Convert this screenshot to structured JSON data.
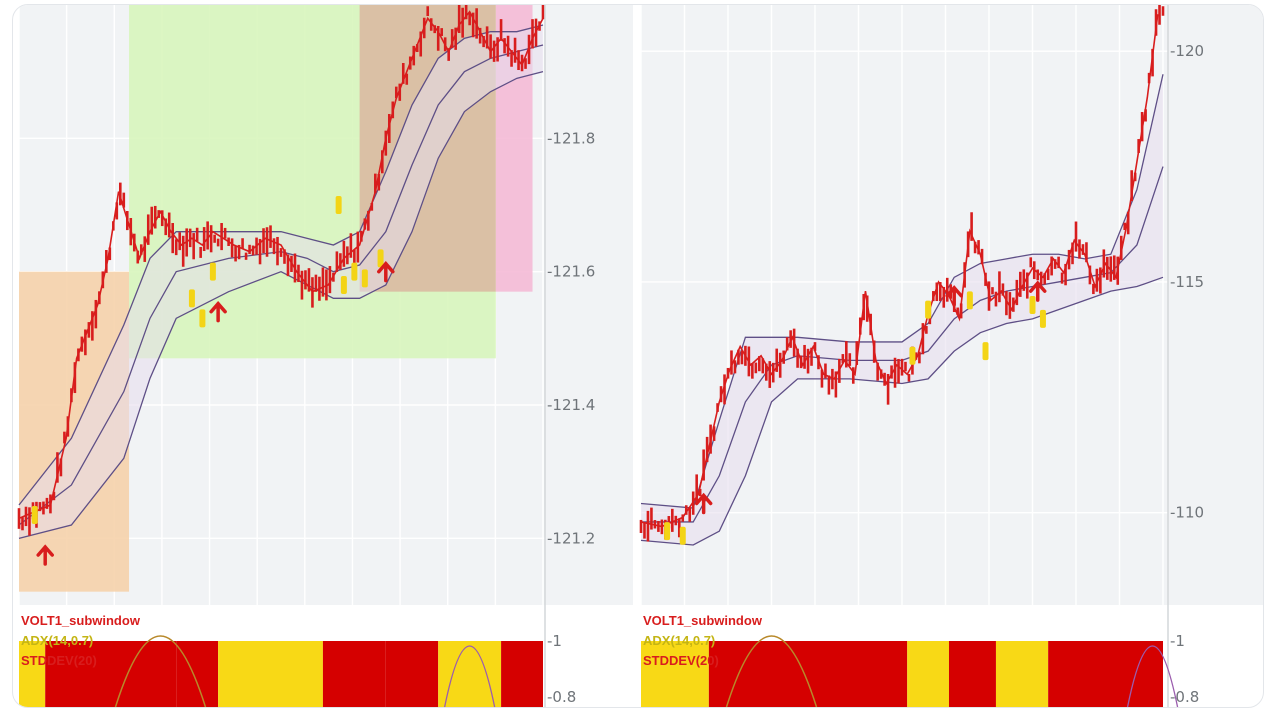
{
  "colors": {
    "candle": "#d81d1d",
    "signal": "#f3d416",
    "band_line": "#5e4f86",
    "band_fill": "#e6dced",
    "zone_orange": "#f6cfa6",
    "zone_green": "#d6f5b8",
    "zone_brown": "#d9b6a0",
    "zone_pink": "#f5b6d4",
    "bg_gray": "#f1f3f5",
    "ind_red": "#d50000",
    "ind_yellow": "#f8d916",
    "adx_line": "#b8892a"
  },
  "chart_data": [
    {
      "type": "line",
      "title": "",
      "ylim": [
        121.1,
        122.0
      ],
      "yticks": [
        121.2,
        121.4,
        121.6,
        121.8
      ],
      "y_axis_labels": [
        "-121.2",
        "-121.4",
        "-121.6",
        "-121.8"
      ],
      "grid": true,
      "series": [
        {
          "role": "price",
          "x": [
            0,
            3,
            6,
            9,
            11,
            13,
            15,
            17,
            19,
            21,
            23,
            25,
            27,
            29,
            31,
            33,
            35,
            37,
            39,
            41,
            44,
            47,
            50,
            53,
            56,
            59,
            62,
            65,
            68,
            70,
            72,
            74,
            76,
            78,
            80,
            82,
            84,
            86,
            88,
            90,
            92,
            94,
            96,
            98,
            100
          ],
          "values": [
            121.23,
            121.24,
            121.25,
            121.35,
            121.47,
            121.51,
            121.55,
            121.62,
            121.72,
            121.67,
            121.62,
            121.66,
            121.69,
            121.66,
            121.64,
            121.65,
            121.64,
            121.66,
            121.65,
            121.64,
            121.63,
            121.65,
            121.64,
            121.6,
            121.57,
            121.58,
            121.62,
            121.64,
            121.72,
            121.8,
            121.86,
            121.9,
            121.94,
            121.98,
            121.96,
            121.93,
            121.97,
            121.99,
            121.96,
            121.93,
            121.95,
            121.93,
            121.91,
            121.95,
            121.98
          ]
        },
        {
          "role": "band_upper",
          "x": [
            0,
            10,
            20,
            25,
            30,
            40,
            50,
            55,
            60,
            65,
            70,
            75,
            80,
            85,
            90,
            95,
            100
          ],
          "values": [
            121.25,
            121.35,
            121.52,
            121.62,
            121.66,
            121.66,
            121.66,
            121.65,
            121.64,
            121.66,
            121.75,
            121.85,
            121.92,
            121.95,
            121.96,
            121.96,
            121.97
          ]
        },
        {
          "role": "band_middle",
          "x": [
            0,
            10,
            20,
            25,
            30,
            40,
            50,
            55,
            60,
            65,
            70,
            75,
            80,
            85,
            90,
            95,
            100
          ],
          "values": [
            121.22,
            121.28,
            121.42,
            121.53,
            121.6,
            121.62,
            121.63,
            121.62,
            121.6,
            121.61,
            121.66,
            121.76,
            121.85,
            121.9,
            121.92,
            121.93,
            121.94
          ]
        },
        {
          "role": "band_lower",
          "x": [
            0,
            10,
            20,
            25,
            30,
            40,
            50,
            55,
            60,
            65,
            70,
            75,
            80,
            85,
            90,
            95,
            100
          ],
          "values": [
            121.2,
            121.22,
            121.32,
            121.44,
            121.53,
            121.57,
            121.6,
            121.58,
            121.56,
            121.56,
            121.58,
            121.66,
            121.77,
            121.84,
            121.87,
            121.89,
            121.9
          ]
        }
      ],
      "signals": [
        {
          "x": 3,
          "y": 121.235
        },
        {
          "x": 33,
          "y": 121.56
        },
        {
          "x": 35,
          "y": 121.53
        },
        {
          "x": 37,
          "y": 121.6
        },
        {
          "x": 62,
          "y": 121.58
        },
        {
          "x": 64,
          "y": 121.6
        },
        {
          "x": 66,
          "y": 121.59
        },
        {
          "x": 69,
          "y": 121.62
        },
        {
          "x": 61,
          "y": 121.7
        }
      ],
      "arrows": [
        {
          "x": 5,
          "y": 121.175
        },
        {
          "x": 38,
          "y": 121.54
        },
        {
          "x": 70,
          "y": 121.6
        }
      ],
      "zones": [
        {
          "name": "orange",
          "x0": 0,
          "x1": 21,
          "y0": 121.12,
          "y1": 121.6
        },
        {
          "name": "green",
          "x0": 21,
          "x1": 91,
          "y0": 121.47,
          "y1": 122.0
        },
        {
          "name": "brown",
          "x0": 65,
          "x1": 91,
          "y0": 121.57,
          "y1": 122.0
        },
        {
          "name": "pink",
          "x0": 91,
          "x1": 98,
          "y0": 121.57,
          "y1": 122.0
        }
      ],
      "indicator": {
        "labels": [
          "VOLT1_subwindow",
          "ADX(14,0.7)",
          "STDDEV(20)"
        ],
        "y_axis_labels": [
          "-1",
          "-0.8"
        ],
        "blocks": [
          "yellow",
          "red",
          "red",
          "yellow",
          "red",
          "red",
          "yellow",
          "red",
          "red",
          "red"
        ],
        "block_x": [
          0,
          5,
          30,
          38,
          58,
          70,
          80,
          92,
          100,
          100
        ]
      }
    },
    {
      "type": "line",
      "title": "",
      "ylim": [
        108.0,
        121.0
      ],
      "yticks": [
        110,
        115,
        120
      ],
      "y_axis_labels": [
        "-110",
        "-115",
        "-120"
      ],
      "grid": true,
      "series": [
        {
          "role": "price",
          "x": [
            0,
            4,
            8,
            11,
            13,
            15,
            17,
            19,
            21,
            23,
            25,
            27,
            29,
            31,
            33,
            35,
            37,
            39,
            41,
            43,
            45,
            47,
            49,
            51,
            53,
            55,
            57,
            59,
            61,
            63,
            65,
            67,
            69,
            71,
            73,
            75,
            77,
            79,
            81,
            83,
            85,
            87,
            89,
            91,
            93,
            95,
            97,
            99
          ],
          "values": [
            109.8,
            109.7,
            109.9,
            110.4,
            111.4,
            112.4,
            113.1,
            113.6,
            113.2,
            113.4,
            113.0,
            113.3,
            113.8,
            113.2,
            113.6,
            113.0,
            112.9,
            113.3,
            113.0,
            114.8,
            113.3,
            112.8,
            113.2,
            113.0,
            113.4,
            114.3,
            115.0,
            114.7,
            114.2,
            116.1,
            115.6,
            114.6,
            114.8,
            114.4,
            114.9,
            115.3,
            115.1,
            115.5,
            115.2,
            115.9,
            115.6,
            114.9,
            115.4,
            115.1,
            116.2,
            117.6,
            119.0,
            120.8
          ]
        },
        {
          "role": "band_upper",
          "x": [
            0,
            10,
            15,
            20,
            25,
            30,
            40,
            50,
            55,
            60,
            65,
            70,
            75,
            80,
            85,
            90,
            95,
            100
          ],
          "values": [
            110.2,
            110.1,
            112.0,
            113.8,
            113.8,
            113.8,
            113.7,
            113.7,
            114.1,
            115.1,
            115.4,
            115.5,
            115.6,
            115.6,
            115.5,
            115.6,
            117.0,
            119.5
          ]
        },
        {
          "role": "band_middle",
          "x": [
            0,
            10,
            15,
            20,
            25,
            30,
            40,
            50,
            55,
            60,
            65,
            70,
            75,
            80,
            85,
            90,
            95,
            100
          ],
          "values": [
            109.8,
            109.8,
            110.8,
            112.4,
            113.2,
            113.4,
            113.3,
            113.3,
            113.5,
            114.2,
            114.6,
            114.8,
            114.9,
            115.0,
            115.1,
            115.2,
            115.8,
            117.5
          ]
        },
        {
          "role": "band_lower",
          "x": [
            0,
            10,
            15,
            20,
            25,
            30,
            40,
            50,
            55,
            60,
            65,
            70,
            75,
            80,
            85,
            90,
            95,
            100
          ],
          "values": [
            109.4,
            109.3,
            109.6,
            110.8,
            112.4,
            112.9,
            112.9,
            112.8,
            112.9,
            113.5,
            113.9,
            114.1,
            114.2,
            114.4,
            114.6,
            114.8,
            114.9,
            115.1
          ]
        }
      ],
      "signals": [
        {
          "x": 5,
          "y": 109.6
        },
        {
          "x": 8,
          "y": 109.5
        },
        {
          "x": 52,
          "y": 113.4
        },
        {
          "x": 55,
          "y": 114.4
        },
        {
          "x": 63,
          "y": 114.6
        },
        {
          "x": 66,
          "y": 113.5
        },
        {
          "x": 75,
          "y": 114.5
        },
        {
          "x": 77,
          "y": 114.2
        }
      ],
      "arrows": [
        {
          "x": 12,
          "y": 110.2
        },
        {
          "x": 60,
          "y": 114.7
        },
        {
          "x": 76,
          "y": 114.8
        }
      ],
      "zones": [],
      "indicator": {
        "labels": [
          "VOLT1_subwindow",
          "ADX(14,0.7)",
          "STDDEV(20)"
        ],
        "y_axis_labels": [
          "-1",
          "-0.8"
        ],
        "blocks": [
          "yellow",
          "red",
          "yellow",
          "red",
          "yellow",
          "red"
        ],
        "block_x": [
          0,
          13,
          51,
          59,
          68,
          78,
          100
        ]
      }
    }
  ]
}
